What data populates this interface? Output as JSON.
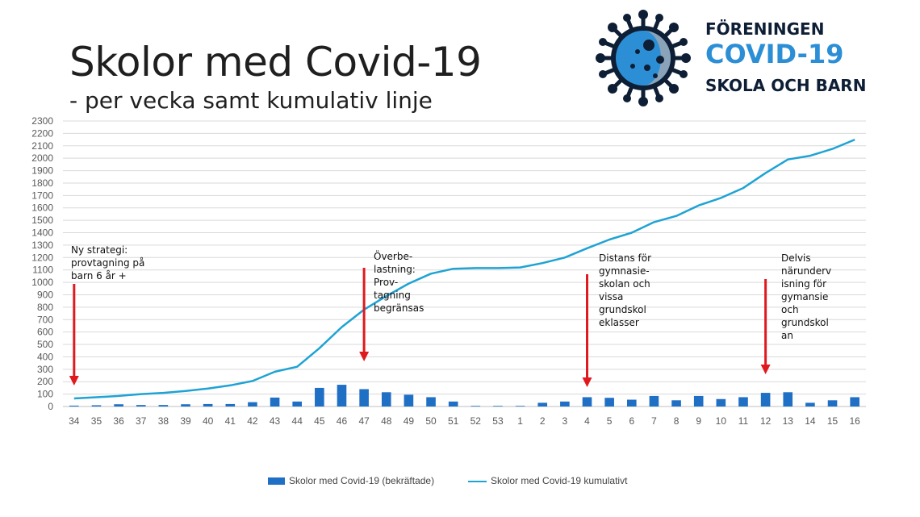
{
  "title": "Skolor med Covid-19",
  "subtitle": "- per vecka samt kumulativ linje",
  "logo": {
    "line1": "FÖRENINGEN",
    "line2": "COVID-19",
    "line3": "SKOLA OCH BARN",
    "icon": "virus-icon"
  },
  "colors": {
    "bars": "#1f6fc5",
    "line": "#1ea3d4",
    "arrows": "#e0191e",
    "grid": "#d9d9d9"
  },
  "annotations": [
    {
      "text": "Ny strategi:\nprovtagning på\nbarn 6 år +",
      "week": "34"
    },
    {
      "text": "Överbe-\nlastning:\nProv-\ntagning\nbegränsas",
      "week": "47"
    },
    {
      "text": "Distans för\ngymnasie-\nskolan och\nvissa\ngrundskol\neklasser",
      "week": "4"
    },
    {
      "text": "Delvis\nnärunderv\nisning för\ngymansie\noch\ngrundskol\nan",
      "week": "12"
    }
  ],
  "chart_data": {
    "type": "bar",
    "categories": [
      "34",
      "35",
      "36",
      "37",
      "38",
      "39",
      "40",
      "41",
      "42",
      "43",
      "44",
      "45",
      "46",
      "47",
      "48",
      "49",
      "50",
      "51",
      "52",
      "53",
      "1",
      "2",
      "3",
      "4",
      "5",
      "6",
      "7",
      "8",
      "9",
      "10",
      "11",
      "12",
      "13",
      "14",
      "15",
      "16"
    ],
    "series": [
      {
        "name": "Skolor med Covid-19 (bekräftade)",
        "type": "bar",
        "values": [
          7,
          10,
          18,
          12,
          12,
          18,
          20,
          20,
          35,
          72,
          40,
          150,
          175,
          140,
          115,
          95,
          75,
          40,
          5,
          5,
          5,
          30,
          40,
          75,
          70,
          55,
          85,
          50,
          85,
          60,
          75,
          110,
          115,
          30,
          50,
          75
        ]
      },
      {
        "name": "Skolor med Covid-19 kumulativt",
        "type": "line",
        "values": [
          65,
          75,
          85,
          100,
          110,
          125,
          145,
          170,
          205,
          280,
          320,
          470,
          640,
          780,
          890,
          990,
          1070,
          1110,
          1115,
          1115,
          1120,
          1155,
          1200,
          1275,
          1345,
          1400,
          1485,
          1535,
          1620,
          1680,
          1760,
          1880,
          1990,
          2020,
          2075,
          2150
        ]
      }
    ],
    "yticks": [
      0,
      100,
      200,
      300,
      400,
      500,
      600,
      700,
      800,
      900,
      1000,
      1100,
      1200,
      1300,
      1400,
      1500,
      1600,
      1700,
      1800,
      1900,
      2000,
      2100,
      2200,
      2300
    ],
    "ylim": [
      0,
      2300
    ],
    "grid": true,
    "legend_position": "bottom",
    "xlabel": "",
    "ylabel": ""
  }
}
